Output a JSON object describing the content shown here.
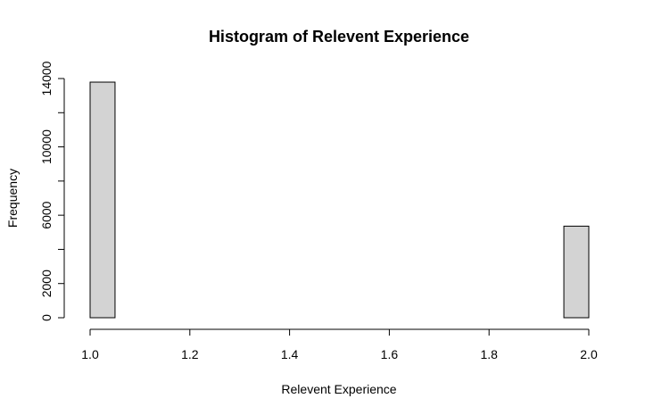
{
  "chart_data": {
    "type": "bar",
    "subtype": "histogram",
    "title": "Histogram of Relevent Experience",
    "xlabel": "Relevent Experience",
    "ylabel": "Frequency",
    "xlim": [
      1.0,
      2.0
    ],
    "ylim": [
      0,
      14000
    ],
    "x_ticks": [
      1.0,
      1.2,
      1.4,
      1.6,
      1.8,
      2.0
    ],
    "x_tick_labels": [
      "1.0",
      "1.2",
      "1.4",
      "1.6",
      "1.8",
      "2.0"
    ],
    "y_ticks": [
      0,
      2000,
      6000,
      10000,
      14000
    ],
    "y_minor_ticks": [
      4000,
      8000,
      12000
    ],
    "y_tick_labels": [
      "0",
      "2000",
      "6000",
      "10000",
      "14000"
    ],
    "bins": [
      {
        "start": 1.0,
        "end": 1.05,
        "count": 13790
      },
      {
        "start": 1.05,
        "end": 1.1,
        "count": 0
      },
      {
        "start": 1.1,
        "end": 1.15,
        "count": 0
      },
      {
        "start": 1.15,
        "end": 1.2,
        "count": 0
      },
      {
        "start": 1.2,
        "end": 1.25,
        "count": 0
      },
      {
        "start": 1.25,
        "end": 1.3,
        "count": 0
      },
      {
        "start": 1.3,
        "end": 1.35,
        "count": 0
      },
      {
        "start": 1.35,
        "end": 1.4,
        "count": 0
      },
      {
        "start": 1.4,
        "end": 1.45,
        "count": 0
      },
      {
        "start": 1.45,
        "end": 1.5,
        "count": 0
      },
      {
        "start": 1.5,
        "end": 1.55,
        "count": 0
      },
      {
        "start": 1.55,
        "end": 1.6,
        "count": 0
      },
      {
        "start": 1.6,
        "end": 1.65,
        "count": 0
      },
      {
        "start": 1.65,
        "end": 1.7,
        "count": 0
      },
      {
        "start": 1.7,
        "end": 1.75,
        "count": 0
      },
      {
        "start": 1.75,
        "end": 1.8,
        "count": 0
      },
      {
        "start": 1.8,
        "end": 1.85,
        "count": 0
      },
      {
        "start": 1.85,
        "end": 1.9,
        "count": 0
      },
      {
        "start": 1.9,
        "end": 1.95,
        "count": 0
      },
      {
        "start": 1.95,
        "end": 2.0,
        "count": 5360
      }
    ],
    "bar_fill": "#d3d3d3",
    "bar_stroke": "#000000",
    "grid": false,
    "legend": "none"
  }
}
